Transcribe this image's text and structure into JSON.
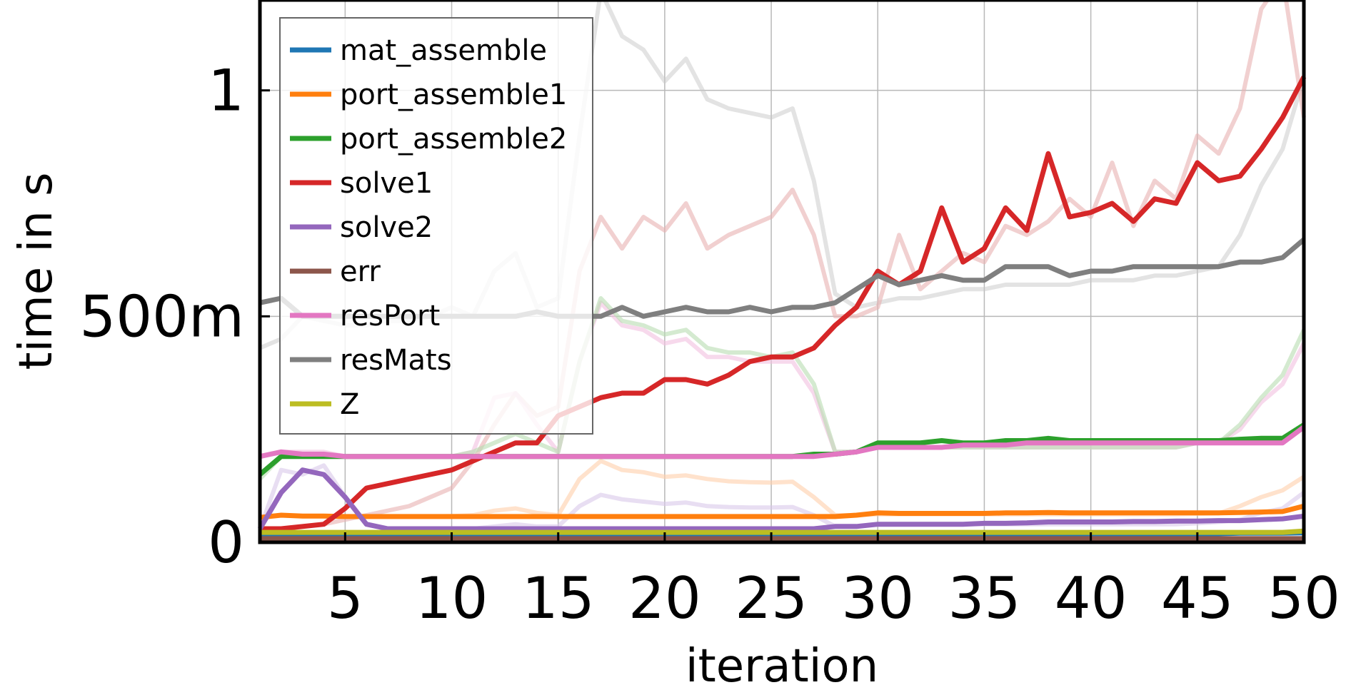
{
  "chart_data": {
    "type": "line",
    "xlabel": "iteration",
    "ylabel": "time in s",
    "xlim": [
      1,
      50
    ],
    "ylim": [
      0,
      1.2
    ],
    "x_ticks": [
      {
        "value": 5,
        "label": "5"
      },
      {
        "value": 10,
        "label": "10"
      },
      {
        "value": 15,
        "label": "15"
      },
      {
        "value": 20,
        "label": "20"
      },
      {
        "value": 25,
        "label": "25"
      },
      {
        "value": 30,
        "label": "30"
      },
      {
        "value": 35,
        "label": "35"
      },
      {
        "value": 40,
        "label": "40"
      },
      {
        "value": 45,
        "label": "45"
      },
      {
        "value": 50,
        "label": "50"
      }
    ],
    "y_ticks": [
      {
        "value": 0,
        "label": "0"
      },
      {
        "value": 0.5,
        "label": "500m"
      },
      {
        "value": 1,
        "label": "1"
      }
    ],
    "grid": true,
    "legend_position": "top-left",
    "x": [
      1,
      2,
      3,
      4,
      5,
      6,
      7,
      8,
      9,
      10,
      11,
      12,
      13,
      14,
      15,
      16,
      17,
      18,
      19,
      20,
      21,
      22,
      23,
      24,
      25,
      26,
      27,
      28,
      29,
      30,
      31,
      32,
      33,
      34,
      35,
      36,
      37,
      38,
      39,
      40,
      41,
      42,
      43,
      44,
      45,
      46,
      47,
      48,
      49,
      50
    ],
    "series": [
      {
        "name": "mat_assemble",
        "color": "#1f77b4",
        "values": [
          0.018,
          0.018,
          0.018,
          0.018,
          0.018,
          0.018,
          0.018,
          0.018,
          0.018,
          0.018,
          0.018,
          0.018,
          0.018,
          0.018,
          0.018,
          0.018,
          0.018,
          0.018,
          0.018,
          0.018,
          0.018,
          0.018,
          0.018,
          0.018,
          0.018,
          0.018,
          0.018,
          0.018,
          0.018,
          0.019,
          0.019,
          0.019,
          0.019,
          0.019,
          0.019,
          0.019,
          0.019,
          0.019,
          0.019,
          0.019,
          0.019,
          0.019,
          0.019,
          0.019,
          0.019,
          0.019,
          0.02,
          0.02,
          0.02,
          0.021
        ]
      },
      {
        "name": "port_assemble1",
        "color": "#ff7f0e",
        "values": [
          0.055,
          0.06,
          0.058,
          0.058,
          0.057,
          0.057,
          0.057,
          0.057,
          0.057,
          0.057,
          0.057,
          0.057,
          0.057,
          0.057,
          0.057,
          0.057,
          0.057,
          0.057,
          0.057,
          0.057,
          0.057,
          0.057,
          0.057,
          0.057,
          0.057,
          0.057,
          0.057,
          0.057,
          0.06,
          0.065,
          0.064,
          0.064,
          0.064,
          0.064,
          0.064,
          0.065,
          0.065,
          0.066,
          0.065,
          0.065,
          0.065,
          0.065,
          0.065,
          0.065,
          0.065,
          0.065,
          0.066,
          0.067,
          0.068,
          0.08
        ]
      },
      {
        "name": "port_assemble2",
        "color": "#2ca02c",
        "values": [
          0.15,
          0.19,
          0.19,
          0.19,
          0.19,
          0.19,
          0.19,
          0.19,
          0.19,
          0.19,
          0.19,
          0.19,
          0.19,
          0.19,
          0.19,
          0.19,
          0.19,
          0.19,
          0.19,
          0.19,
          0.19,
          0.19,
          0.19,
          0.19,
          0.19,
          0.19,
          0.195,
          0.195,
          0.2,
          0.22,
          0.22,
          0.22,
          0.225,
          0.22,
          0.22,
          0.225,
          0.225,
          0.23,
          0.225,
          0.225,
          0.225,
          0.225,
          0.225,
          0.225,
          0.225,
          0.225,
          0.228,
          0.23,
          0.23,
          0.26
        ]
      },
      {
        "name": "solve1",
        "color": "#d62728",
        "values": [
          0.03,
          0.03,
          0.035,
          0.04,
          0.075,
          0.12,
          0.13,
          0.14,
          0.15,
          0.16,
          0.18,
          0.2,
          0.22,
          0.22,
          0.28,
          0.3,
          0.32,
          0.33,
          0.33,
          0.36,
          0.36,
          0.35,
          0.37,
          0.4,
          0.41,
          0.41,
          0.43,
          0.48,
          0.52,
          0.6,
          0.57,
          0.6,
          0.74,
          0.62,
          0.65,
          0.74,
          0.69,
          0.86,
          0.72,
          0.73,
          0.75,
          0.71,
          0.76,
          0.75,
          0.84,
          0.8,
          0.81,
          0.87,
          0.94,
          1.03
        ]
      },
      {
        "name": "solve2",
        "color": "#9467bd",
        "values": [
          0.03,
          0.11,
          0.16,
          0.15,
          0.1,
          0.04,
          0.03,
          0.03,
          0.03,
          0.03,
          0.03,
          0.03,
          0.03,
          0.03,
          0.03,
          0.03,
          0.03,
          0.03,
          0.03,
          0.03,
          0.03,
          0.03,
          0.03,
          0.03,
          0.03,
          0.03,
          0.03,
          0.035,
          0.035,
          0.04,
          0.04,
          0.04,
          0.04,
          0.04,
          0.042,
          0.042,
          0.043,
          0.045,
          0.045,
          0.045,
          0.045,
          0.046,
          0.046,
          0.047,
          0.047,
          0.048,
          0.048,
          0.05,
          0.052,
          0.058
        ]
      },
      {
        "name": "err",
        "color": "#8c564b",
        "values": [
          0.008,
          0.008,
          0.008,
          0.008,
          0.008,
          0.008,
          0.008,
          0.008,
          0.008,
          0.008,
          0.008,
          0.008,
          0.008,
          0.008,
          0.008,
          0.008,
          0.008,
          0.008,
          0.008,
          0.008,
          0.008,
          0.008,
          0.008,
          0.008,
          0.008,
          0.008,
          0.008,
          0.008,
          0.008,
          0.008,
          0.008,
          0.008,
          0.008,
          0.008,
          0.008,
          0.008,
          0.008,
          0.008,
          0.008,
          0.008,
          0.008,
          0.008,
          0.008,
          0.008,
          0.008,
          0.008,
          0.008,
          0.008,
          0.008,
          0.008
        ]
      },
      {
        "name": "resPort",
        "color": "#e377c2",
        "values": [
          0.19,
          0.2,
          0.195,
          0.195,
          0.19,
          0.19,
          0.19,
          0.19,
          0.19,
          0.19,
          0.19,
          0.19,
          0.19,
          0.19,
          0.19,
          0.19,
          0.19,
          0.19,
          0.19,
          0.19,
          0.19,
          0.19,
          0.19,
          0.19,
          0.19,
          0.19,
          0.19,
          0.195,
          0.2,
          0.21,
          0.21,
          0.21,
          0.21,
          0.215,
          0.215,
          0.215,
          0.22,
          0.22,
          0.22,
          0.22,
          0.22,
          0.22,
          0.22,
          0.22,
          0.22,
          0.22,
          0.22,
          0.22,
          0.22,
          0.255
        ]
      },
      {
        "name": "resMats",
        "color": "#7f7f7f",
        "values": [
          0.53,
          0.54,
          0.5,
          0.5,
          0.5,
          0.5,
          0.5,
          0.5,
          0.5,
          0.5,
          0.5,
          0.5,
          0.5,
          0.51,
          0.5,
          0.5,
          0.5,
          0.52,
          0.5,
          0.51,
          0.52,
          0.51,
          0.51,
          0.52,
          0.51,
          0.52,
          0.52,
          0.53,
          0.56,
          0.59,
          0.57,
          0.58,
          0.59,
          0.58,
          0.58,
          0.61,
          0.61,
          0.61,
          0.59,
          0.6,
          0.6,
          0.61,
          0.61,
          0.61,
          0.61,
          0.61,
          0.62,
          0.62,
          0.63,
          0.67
        ]
      },
      {
        "name": "Z",
        "color": "#bcbd22",
        "values": [
          0.022,
          0.022,
          0.022,
          0.022,
          0.022,
          0.022,
          0.022,
          0.022,
          0.022,
          0.022,
          0.022,
          0.022,
          0.022,
          0.022,
          0.022,
          0.022,
          0.022,
          0.022,
          0.022,
          0.022,
          0.022,
          0.022,
          0.022,
          0.022,
          0.022,
          0.022,
          0.022,
          0.022,
          0.022,
          0.022,
          0.022,
          0.022,
          0.022,
          0.022,
          0.022,
          0.022,
          0.022,
          0.022,
          0.022,
          0.022,
          0.022,
          0.022,
          0.022,
          0.022,
          0.022,
          0.022,
          0.022,
          0.022,
          0.022,
          0.025
        ]
      }
    ],
    "faded_runs": [
      {
        "of": "resMats",
        "color": "#c8c8c8",
        "opacity": 0.5,
        "values": [
          0.43,
          0.45,
          0.5,
          0.49,
          0.48,
          0.48,
          0.49,
          0.49,
          0.5,
          0.52,
          0.5,
          0.6,
          0.64,
          0.52,
          0.54,
          0.9,
          1.22,
          1.12,
          1.09,
          1.02,
          1.07,
          0.98,
          0.96,
          0.95,
          0.94,
          0.96,
          0.8,
          0.55,
          0.52,
          0.53,
          0.54,
          0.54,
          0.55,
          0.56,
          0.56,
          0.57,
          0.57,
          0.57,
          0.57,
          0.58,
          0.58,
          0.58,
          0.59,
          0.59,
          0.6,
          0.61,
          0.68,
          0.79,
          0.87,
          1.03
        ]
      },
      {
        "of": "solve1",
        "color": "#e8b0b0",
        "opacity": 0.6,
        "values": [
          0.03,
          0.03,
          0.035,
          0.04,
          0.05,
          0.06,
          0.07,
          0.08,
          0.1,
          0.12,
          0.18,
          0.26,
          0.33,
          0.28,
          0.3,
          0.6,
          0.72,
          0.65,
          0.72,
          0.69,
          0.75,
          0.65,
          0.68,
          0.7,
          0.72,
          0.78,
          0.68,
          0.5,
          0.5,
          0.52,
          0.68,
          0.56,
          0.6,
          0.64,
          0.62,
          0.7,
          0.68,
          0.71,
          0.76,
          0.72,
          0.84,
          0.7,
          0.8,
          0.76,
          0.9,
          0.86,
          0.96,
          1.18,
          1.3,
          0.94
        ]
      },
      {
        "of": "resPort",
        "color": "#f2bfe0",
        "opacity": 0.6,
        "values": [
          0.19,
          0.2,
          0.2,
          0.2,
          0.19,
          0.19,
          0.19,
          0.19,
          0.19,
          0.19,
          0.2,
          0.32,
          0.33,
          0.26,
          0.2,
          0.4,
          0.53,
          0.48,
          0.47,
          0.44,
          0.45,
          0.41,
          0.41,
          0.4,
          0.4,
          0.4,
          0.33,
          0.2,
          0.2,
          0.21,
          0.21,
          0.21,
          0.21,
          0.21,
          0.21,
          0.21,
          0.21,
          0.21,
          0.21,
          0.21,
          0.21,
          0.21,
          0.21,
          0.21,
          0.22,
          0.22,
          0.25,
          0.31,
          0.35,
          0.44
        ]
      },
      {
        "of": "port_assemble2",
        "color": "#b8dcb0",
        "opacity": 0.6,
        "values": [
          0.14,
          0.19,
          0.19,
          0.19,
          0.19,
          0.19,
          0.19,
          0.19,
          0.19,
          0.19,
          0.2,
          0.22,
          0.24,
          0.22,
          0.2,
          0.4,
          0.54,
          0.49,
          0.48,
          0.46,
          0.47,
          0.43,
          0.42,
          0.42,
          0.41,
          0.42,
          0.35,
          0.2,
          0.2,
          0.21,
          0.22,
          0.21,
          0.21,
          0.21,
          0.21,
          0.21,
          0.21,
          0.21,
          0.21,
          0.21,
          0.21,
          0.21,
          0.21,
          0.21,
          0.22,
          0.22,
          0.26,
          0.32,
          0.37,
          0.47
        ]
      },
      {
        "of": "port_assemble1",
        "color": "#ffcfaa",
        "opacity": 0.6,
        "values": [
          0.055,
          0.06,
          0.058,
          0.058,
          0.057,
          0.057,
          0.057,
          0.057,
          0.057,
          0.058,
          0.06,
          0.07,
          0.075,
          0.065,
          0.06,
          0.14,
          0.18,
          0.16,
          0.155,
          0.145,
          0.148,
          0.14,
          0.135,
          0.133,
          0.132,
          0.134,
          0.1,
          0.06,
          0.06,
          0.062,
          0.062,
          0.062,
          0.062,
          0.062,
          0.062,
          0.062,
          0.062,
          0.062,
          0.062,
          0.062,
          0.062,
          0.062,
          0.062,
          0.062,
          0.063,
          0.064,
          0.08,
          0.1,
          0.115,
          0.145
        ]
      },
      {
        "of": "solve2",
        "color": "#d8c8ea",
        "opacity": 0.6,
        "values": [
          0.03,
          0.16,
          0.15,
          0.17,
          0.1,
          0.04,
          0.03,
          0.03,
          0.03,
          0.03,
          0.03,
          0.035,
          0.04,
          0.035,
          0.035,
          0.08,
          0.105,
          0.095,
          0.09,
          0.085,
          0.088,
          0.08,
          0.078,
          0.077,
          0.077,
          0.078,
          0.06,
          0.035,
          0.035,
          0.04,
          0.04,
          0.04,
          0.04,
          0.04,
          0.04,
          0.04,
          0.04,
          0.04,
          0.04,
          0.04,
          0.04,
          0.04,
          0.04,
          0.04,
          0.042,
          0.045,
          0.05,
          0.065,
          0.075,
          0.11
        ]
      }
    ]
  }
}
